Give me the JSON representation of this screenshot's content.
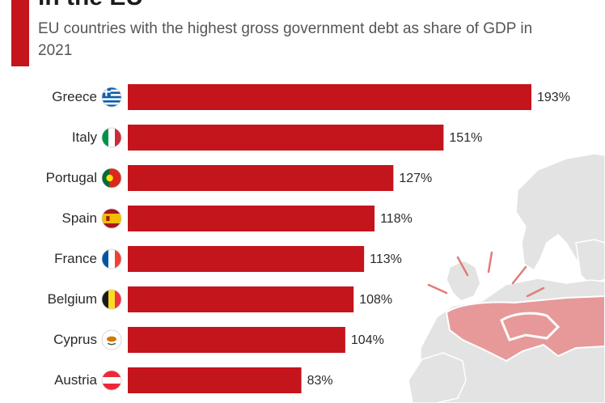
{
  "header": {
    "title_visible_fragment": "in the EU",
    "subtitle": "EU countries with the highest gross government debt as share of GDP in 2021"
  },
  "colors": {
    "bar": "#c4141c",
    "accent": "#c4141c",
    "map_land": "#e2e2e2",
    "map_border": "#ffffff",
    "highlight": "#e07c7c"
  },
  "chart_data": {
    "type": "bar",
    "orientation": "horizontal",
    "title": "",
    "subtitle": "EU countries with the highest gross government debt as share of GDP in 2021",
    "xlabel": "",
    "ylabel": "",
    "categories": [
      "Greece",
      "Italy",
      "Portugal",
      "Spain",
      "France",
      "Belgium",
      "Cyprus",
      "Austria"
    ],
    "values": [
      193,
      151,
      127,
      118,
      113,
      108,
      104,
      83
    ],
    "value_labels": [
      "193%",
      "151%",
      "127%",
      "118%",
      "113%",
      "108%",
      "104%",
      "83%"
    ],
    "flag_icons": [
      "greece-flag-icon",
      "italy-flag-icon",
      "portugal-flag-icon",
      "spain-flag-icon",
      "france-flag-icon",
      "belgium-flag-icon",
      "cyprus-flag-icon",
      "austria-flag-icon"
    ],
    "xlim": [
      0,
      193
    ],
    "grid": false,
    "legend": "none"
  }
}
